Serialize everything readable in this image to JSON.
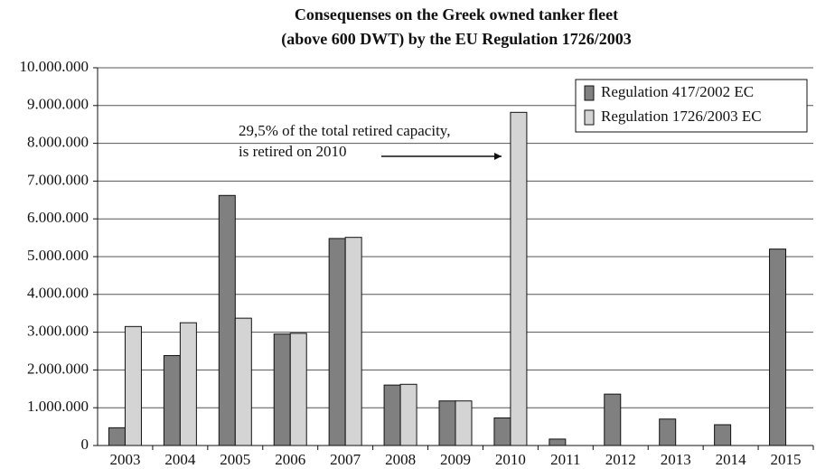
{
  "chart_data": {
    "type": "bar",
    "title": [
      "Consequenses on the Greek owned tanker fleet",
      "(above 600 DWT) by the EU Regulation 1726/2003"
    ],
    "categories": [
      "2003",
      "2004",
      "2005",
      "2006",
      "2007",
      "2008",
      "2009",
      "2010",
      "2011",
      "2012",
      "2013",
      "2014",
      "2015"
    ],
    "series": [
      {
        "name": "Regulation 417/2002 EC",
        "color": "#808080",
        "values": [
          470000,
          2380000,
          6620000,
          2950000,
          5480000,
          1600000,
          1180000,
          730000,
          170000,
          1360000,
          700000,
          550000,
          5200000
        ]
      },
      {
        "name": "Regulation 1726/2003 EC",
        "color": "#d4d4d4",
        "values": [
          3150000,
          3250000,
          3370000,
          2970000,
          5510000,
          1620000,
          1180000,
          8820000,
          null,
          null,
          null,
          null,
          null
        ]
      }
    ],
    "annotation": [
      "29,5% of the total retired capacity,",
      "is retired on 2010"
    ],
    "ylim": [
      0,
      10000000
    ],
    "yticks": [
      {
        "value": 0,
        "label": "0"
      },
      {
        "value": 1000000,
        "label": "1.000.000"
      },
      {
        "value": 2000000,
        "label": "2.000.000"
      },
      {
        "value": 3000000,
        "label": "3.000.000"
      },
      {
        "value": 4000000,
        "label": "4.000.000"
      },
      {
        "value": 5000000,
        "label": "5.000.000"
      },
      {
        "value": 6000000,
        "label": "6.000.000"
      },
      {
        "value": 7000000,
        "label": "7.000.000"
      },
      {
        "value": 8000000,
        "label": "8.000.000"
      },
      {
        "value": 9000000,
        "label": "9.000.000"
      },
      {
        "value": 10000000,
        "label": "10.000.000"
      }
    ],
    "grid": true,
    "legend": "top-right"
  }
}
